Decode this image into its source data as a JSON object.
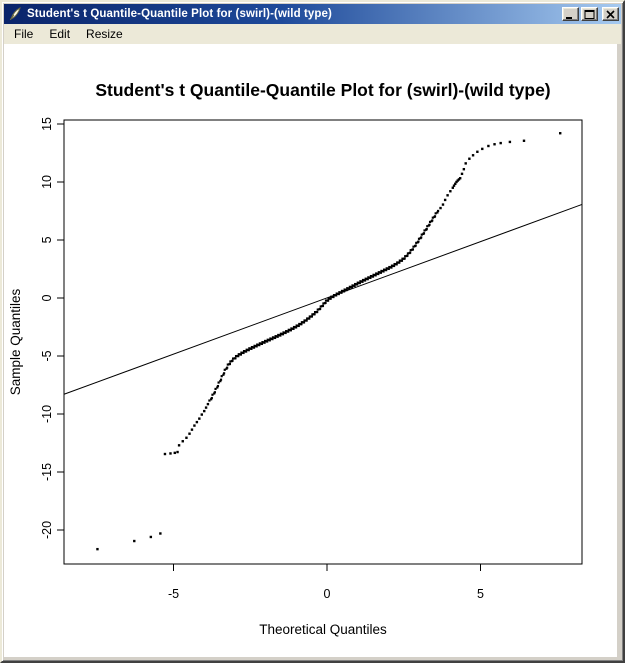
{
  "window": {
    "title": "Student's t Quantile-Quantile Plot for (swirl)-(wild type)",
    "icon_name": "quill-icon",
    "controls": [
      "minimize",
      "maximize",
      "close"
    ],
    "menu_items": [
      "File",
      "Edit",
      "Resize"
    ],
    "colors": {
      "titlebar_left": "#0A246A",
      "titlebar_right": "#A6CAF0",
      "titlebar_text": "#FFFFFF",
      "chrome": "#D4D0C8",
      "menubar": "#ECE9D8",
      "canvas": "#FFFFFF",
      "plot_ink": "#000000"
    }
  },
  "chart_data": {
    "type": "scatter",
    "title": "Student's t Quantile-Quantile Plot for (swirl)-(wild type)",
    "xlabel": "Theoretical Quantiles",
    "ylabel": "Sample Quantiles",
    "xlim": [
      -8.57,
      8.31
    ],
    "ylim": [
      -22.93,
      15.34
    ],
    "x_ticks": [
      -5,
      0,
      5
    ],
    "y_ticks": [
      15,
      10,
      5,
      0,
      -5,
      -10,
      -15,
      -20
    ],
    "grid": false,
    "legend": false,
    "reference_line": {
      "x1": -8.57,
      "y1": -8.3,
      "x2": 8.31,
      "y2": 8.06
    },
    "lower_outlier_points": [
      [
        -7.48,
        -21.65
      ],
      [
        -6.28,
        -20.95
      ],
      [
        -5.74,
        -20.6
      ],
      [
        -5.43,
        -20.3
      ]
    ],
    "lower_sparse_points": [
      [
        -5.28,
        -13.45
      ],
      [
        -5.1,
        -13.4
      ],
      [
        -4.96,
        -13.35
      ],
      [
        -4.87,
        -13.28
      ],
      [
        -4.82,
        -12.7
      ],
      [
        -4.7,
        -12.35
      ],
      [
        -4.58,
        -12.05
      ],
      [
        -4.48,
        -11.7
      ],
      [
        -4.4,
        -11.35
      ],
      [
        -4.32,
        -11.0
      ],
      [
        -4.24,
        -10.7
      ],
      [
        -4.16,
        -10.4
      ],
      [
        -4.08,
        -10.05
      ],
      [
        -4.0,
        -9.75
      ],
      [
        -3.94,
        -9.45
      ],
      [
        -3.88,
        -9.15
      ]
    ],
    "dense_curve_anchors": [
      [
        -3.82,
        -8.9
      ],
      [
        -3.72,
        -8.4
      ],
      [
        -3.62,
        -7.9
      ],
      [
        -3.52,
        -7.35
      ],
      [
        -3.42,
        -6.8
      ],
      [
        -3.32,
        -6.25
      ],
      [
        -3.22,
        -5.8
      ],
      [
        -3.08,
        -5.35
      ],
      [
        -2.92,
        -5.0
      ],
      [
        -2.72,
        -4.68
      ],
      [
        -2.52,
        -4.4
      ],
      [
        -2.32,
        -4.15
      ],
      [
        -2.12,
        -3.9
      ],
      [
        -1.92,
        -3.66
      ],
      [
        -1.72,
        -3.42
      ],
      [
        -1.52,
        -3.18
      ],
      [
        -1.32,
        -2.92
      ],
      [
        -1.12,
        -2.65
      ],
      [
        -0.92,
        -2.35
      ],
      [
        -0.72,
        -2.0
      ],
      [
        -0.52,
        -1.6
      ],
      [
        -0.32,
        -1.15
      ],
      [
        -0.16,
        -0.7
      ],
      [
        -0.02,
        -0.28
      ],
      [
        0.12,
        0.0
      ],
      [
        0.3,
        0.28
      ],
      [
        0.5,
        0.55
      ],
      [
        0.7,
        0.82
      ],
      [
        0.9,
        1.1
      ],
      [
        1.1,
        1.38
      ],
      [
        1.3,
        1.64
      ],
      [
        1.5,
        1.9
      ],
      [
        1.7,
        2.16
      ],
      [
        1.9,
        2.42
      ],
      [
        2.1,
        2.68
      ],
      [
        2.3,
        3.0
      ],
      [
        2.5,
        3.38
      ],
      [
        2.65,
        3.78
      ],
      [
        2.8,
        4.25
      ],
      [
        2.95,
        4.8
      ],
      [
        3.1,
        5.4
      ],
      [
        3.25,
        6.0
      ],
      [
        3.4,
        6.62
      ],
      [
        3.52,
        7.1
      ],
      [
        3.62,
        7.5
      ]
    ],
    "dense_sample_step": 0.03,
    "upper_sparse_points": [
      [
        3.7,
        7.75
      ],
      [
        3.78,
        8.05
      ],
      [
        3.85,
        8.45
      ],
      [
        3.93,
        8.85
      ],
      [
        4.02,
        9.2
      ],
      [
        4.1,
        9.5
      ],
      [
        4.14,
        9.68
      ],
      [
        4.18,
        9.84
      ],
      [
        4.22,
        10.0
      ],
      [
        4.26,
        10.12
      ],
      [
        4.3,
        10.22
      ],
      [
        4.34,
        10.32
      ],
      [
        4.4,
        10.7
      ],
      [
        4.46,
        11.1
      ],
      [
        4.52,
        11.6
      ],
      [
        4.64,
        12.0
      ],
      [
        4.76,
        12.3
      ],
      [
        4.9,
        12.6
      ],
      [
        5.06,
        12.85
      ],
      [
        5.26,
        13.1
      ],
      [
        5.46,
        13.25
      ],
      [
        5.66,
        13.35
      ],
      [
        5.96,
        13.45
      ],
      [
        6.42,
        13.55
      ],
      [
        7.6,
        14.2
      ]
    ]
  }
}
